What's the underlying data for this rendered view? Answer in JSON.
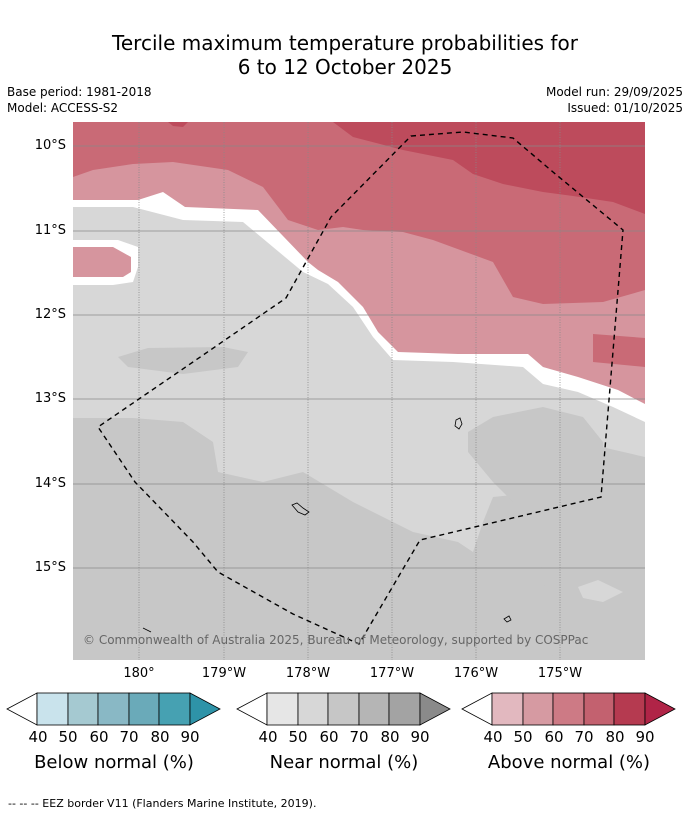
{
  "title": {
    "line1": "Tercile maximum temperature probabilities for",
    "line2": "6 to 12 October 2025"
  },
  "meta": {
    "base_period": "Base period: 1981-2018",
    "model": "Model: ACCESS-S2",
    "model_run": "Model run: 29/09/2025",
    "issued": "Issued: 01/10/2025"
  },
  "axes": {
    "lat_labels": [
      "10°S",
      "11°S",
      "12°S",
      "13°S",
      "14°S",
      "15°S"
    ],
    "lon_labels": [
      "180°",
      "179°W",
      "178°W",
      "177°W",
      "176°W",
      "175°W"
    ]
  },
  "credit": "© Commonwealth of Australia 2025, Bureau of Meteorology, supported by COSPPac",
  "colorbars": [
    {
      "caption": "Below normal (%)",
      "ticks": [
        "40",
        "50",
        "60",
        "70",
        "80",
        "90"
      ],
      "colors": [
        "#c9e3ec",
        "#a5c9d1",
        "#89b8c5",
        "#6aaab9",
        "#46a1b2",
        "#2e93a8"
      ]
    },
    {
      "caption": "Near normal (%)",
      "ticks": [
        "40",
        "50",
        "60",
        "70",
        "80",
        "90"
      ],
      "colors": [
        "#e6e6e6",
        "#d7d7d7",
        "#c6c6c6",
        "#b5b5b5",
        "#a3a3a3",
        "#8a8a8a"
      ]
    },
    {
      "caption": "Above normal (%)",
      "ticks": [
        "40",
        "50",
        "60",
        "70",
        "80",
        "90"
      ],
      "colors": [
        "#e2b8bf",
        "#d69aa2",
        "#cd7a85",
        "#c3616f",
        "#b53a50",
        "#b02447"
      ]
    }
  ],
  "footer": "--  --  -- EEZ border V11 (Flanders Marine Institute, 2019)."
}
